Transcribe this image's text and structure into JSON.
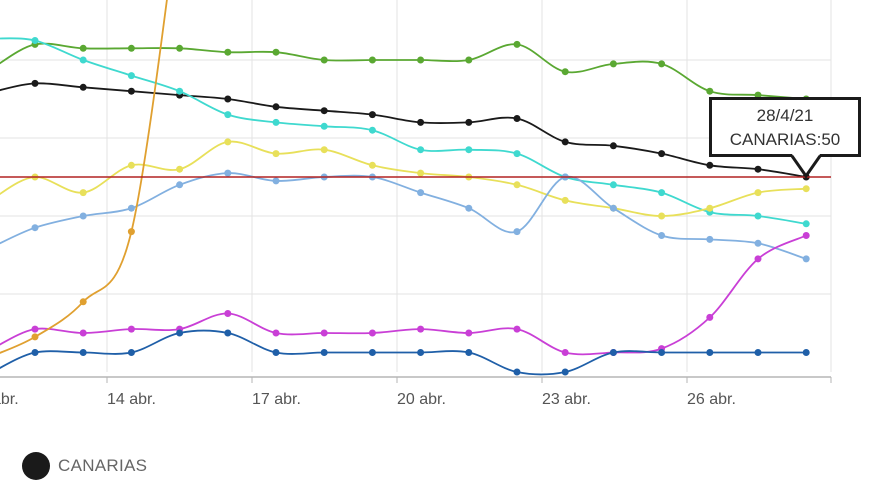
{
  "chart_data": {
    "type": "line",
    "title": "",
    "xlabel": "",
    "ylabel": "",
    "x": [
      "12/4/21",
      "13/4/21",
      "14/4/21",
      "15/4/21",
      "16/4/21",
      "17/4/21",
      "18/4/21",
      "19/4/21",
      "20/4/21",
      "21/4/21",
      "22/4/21",
      "23/4/21",
      "24/4/21",
      "25/4/21",
      "26/4/21",
      "27/4/21",
      "28/4/21"
    ],
    "x_tick_labels": [
      "abr.",
      "14 abr.",
      "17 abr.",
      "20 abr.",
      "23 abr.",
      "26 abr."
    ],
    "ylim": [
      0,
      95
    ],
    "grid": true,
    "reference_line": {
      "value": 50,
      "color": "#b22222"
    },
    "legend_position": "bottom-left",
    "series": [
      {
        "name": "CANARIAS",
        "color": "#1a1a1a",
        "values": [
          74,
          73,
          72,
          71,
          70,
          68,
          67,
          66,
          64,
          64,
          65,
          59,
          58,
          56,
          53,
          52,
          50
        ]
      },
      {
        "name": "green",
        "color": "#5aa832",
        "values": [
          84,
          83,
          83,
          83,
          82,
          82,
          80,
          80,
          80,
          80,
          84,
          77,
          79,
          79,
          72,
          71,
          70
        ]
      },
      {
        "name": "turquoise",
        "color": "#3fd9cf",
        "values": [
          85,
          80,
          76,
          72,
          66,
          64,
          63,
          62,
          57,
          57,
          56,
          50,
          48,
          46,
          41,
          40,
          38
        ]
      },
      {
        "name": "yellow",
        "color": "#e8e05a",
        "values": [
          50,
          46,
          53,
          52,
          59,
          56,
          57,
          53,
          51,
          50,
          48,
          44,
          42,
          40,
          42,
          46,
          47
        ]
      },
      {
        "name": "light-blue",
        "color": "#82b0e0",
        "values": [
          37,
          40,
          42,
          48,
          51,
          49,
          50,
          50,
          46,
          42,
          36,
          50,
          42,
          35,
          34,
          33,
          29
        ]
      },
      {
        "name": "magenta",
        "color": "#c93fd6",
        "values": [
          11,
          10,
          11,
          11,
          15,
          10,
          10,
          10,
          11,
          10,
          11,
          5,
          5,
          6,
          14,
          29,
          35
        ]
      },
      {
        "name": "dark-blue",
        "color": "#1f5fa8",
        "values": [
          5,
          5,
          5,
          10,
          10,
          5,
          5,
          5,
          5,
          5,
          0,
          0,
          5,
          5,
          5,
          5,
          5
        ]
      },
      {
        "name": "orange",
        "color": "#e0a030",
        "values": [
          9,
          18,
          36,
          120,
          null,
          null,
          null,
          null,
          null,
          null,
          null,
          null,
          null,
          null,
          null,
          null,
          null
        ]
      }
    ],
    "tooltip": {
      "date": "28/4/21",
      "series": "CANARIAS",
      "value": 50
    }
  },
  "tooltip": {
    "line1": "28/4/21",
    "line2": "CANARIAS:50"
  },
  "legend": {
    "items": [
      {
        "label": "CANARIAS",
        "color": "#1a1a1a"
      }
    ]
  }
}
